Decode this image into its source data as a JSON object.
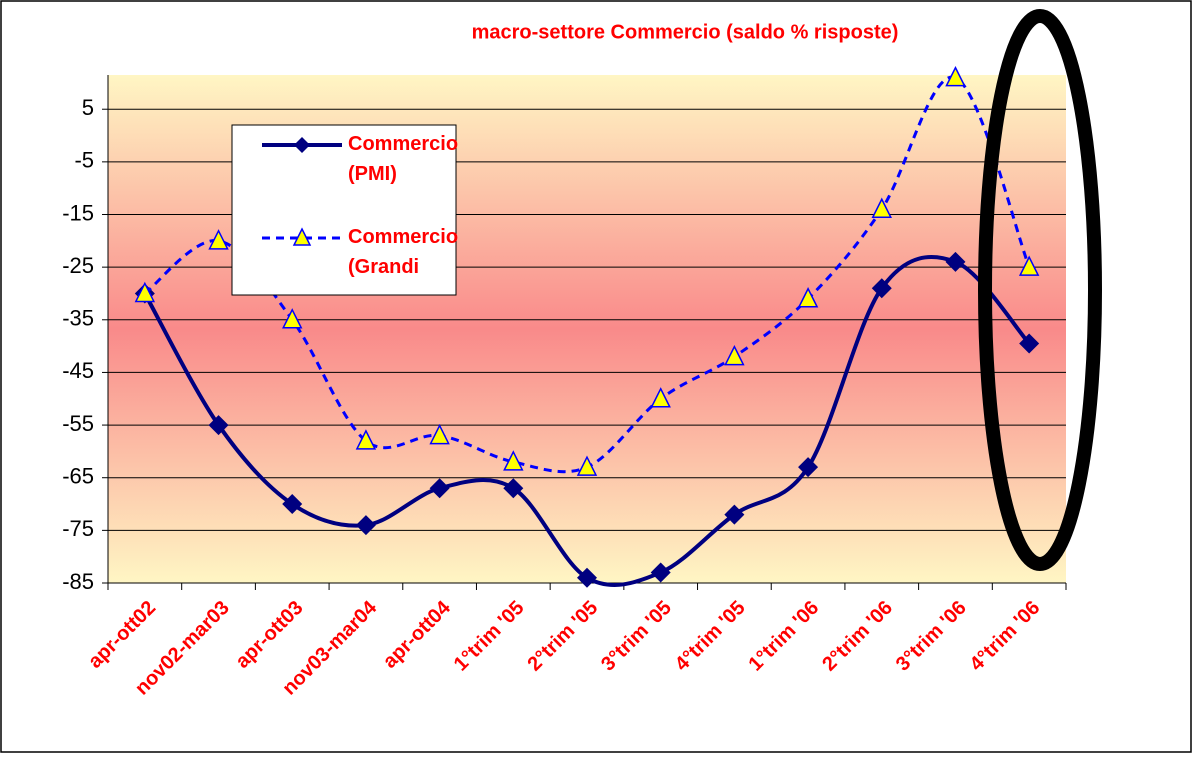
{
  "chart_data": {
    "type": "line",
    "title": "macro-settore Commercio (saldo % risposte)",
    "categories": [
      "apr-ott02",
      "nov02-mar03",
      "apr-ott03",
      "nov03-mar04",
      "apr-ott04",
      "1°trim '05",
      "2°trim '05",
      "3°trim '05",
      "4°trim '05",
      "1°trim '06",
      "2°trim '06",
      "3°trim '06",
      "4°trim '06"
    ],
    "series": [
      {
        "name": "Commercio (PMI)",
        "color": "#000080",
        "values": [
          -30,
          -55,
          -70,
          -74,
          -67,
          -67,
          -84,
          -83,
          -72,
          -63,
          -29,
          -24,
          -39.5
        ]
      },
      {
        "name": "Commercio (Grandi",
        "color": "#0000ff",
        "values": [
          -30,
          -20,
          -35,
          -58,
          -57,
          -62,
          -63,
          -50,
          -42,
          -31,
          -14,
          11,
          -25
        ]
      }
    ],
    "ylim": [
      -85,
      11.5
    ],
    "yticks": [
      5,
      -5,
      -15,
      -25,
      -35,
      -45,
      -55,
      -65,
      -75,
      -85
    ]
  }
}
